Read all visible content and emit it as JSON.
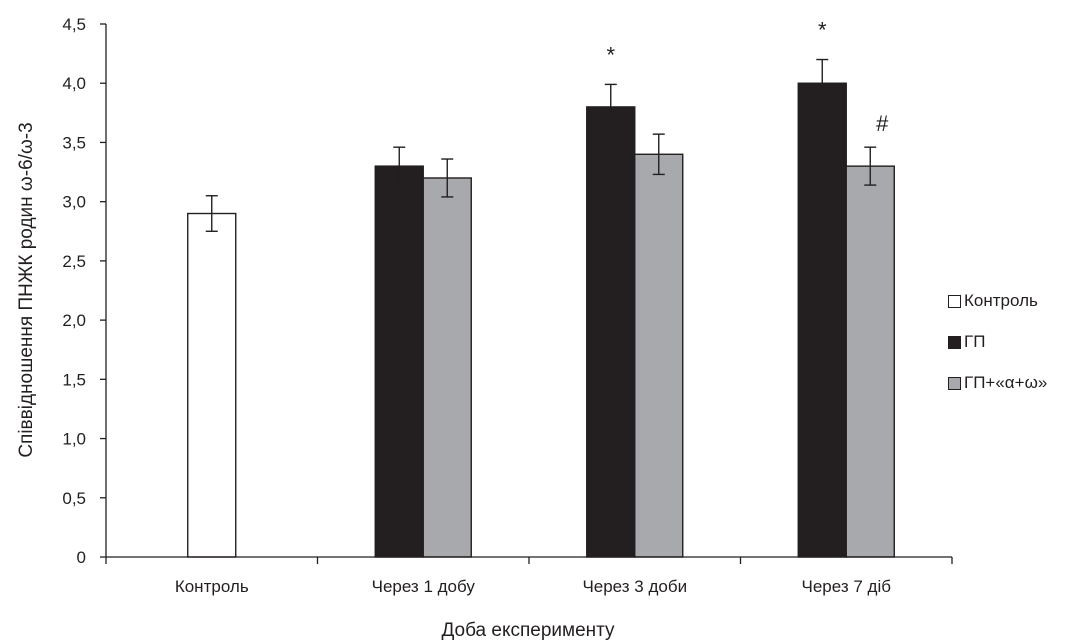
{
  "chart_data": {
    "type": "bar",
    "title": "",
    "xlabel": "Доба експерименту",
    "ylabel": "Співвідношення ПНЖК родин ω-6/ω-3",
    "ylim": [
      0,
      4.5
    ],
    "yticks": [
      {
        "value": 0,
        "label": "0"
      },
      {
        "value": 0.5,
        "label": "0,5"
      },
      {
        "value": 1.0,
        "label": "1,0"
      },
      {
        "value": 1.5,
        "label": "1,5"
      },
      {
        "value": 2.0,
        "label": "2,0"
      },
      {
        "value": 2.5,
        "label": "2,5"
      },
      {
        "value": 3.0,
        "label": "3,0"
      },
      {
        "value": 3.5,
        "label": "3,5"
      },
      {
        "value": 4.0,
        "label": "4,0"
      },
      {
        "value": 4.5,
        "label": "4,5"
      }
    ],
    "categories": [
      "Контроль",
      "Через 1 добу",
      "Через 3 доби",
      "Через 7 діб"
    ],
    "series": [
      {
        "name": "Контроль",
        "color": "#ffffff",
        "values": [
          2.9,
          null,
          null,
          null
        ],
        "errors": [
          0.15,
          null,
          null,
          null
        ],
        "annotations": [
          "",
          "",
          "",
          ""
        ]
      },
      {
        "name": "ГП",
        "color": "#231f20",
        "values": [
          null,
          3.3,
          3.8,
          4.0
        ],
        "errors": [
          null,
          0.16,
          0.19,
          0.2
        ],
        "annotations": [
          "",
          "",
          "*",
          "*"
        ]
      },
      {
        "name": "ГП+«α+ω»",
        "color": "#a7a9ac",
        "values": [
          null,
          3.2,
          3.4,
          3.3
        ],
        "errors": [
          null,
          0.16,
          0.17,
          0.16
        ],
        "annotations": [
          "",
          "",
          "",
          "#"
        ]
      }
    ],
    "legend_position": "right",
    "grid": false
  }
}
